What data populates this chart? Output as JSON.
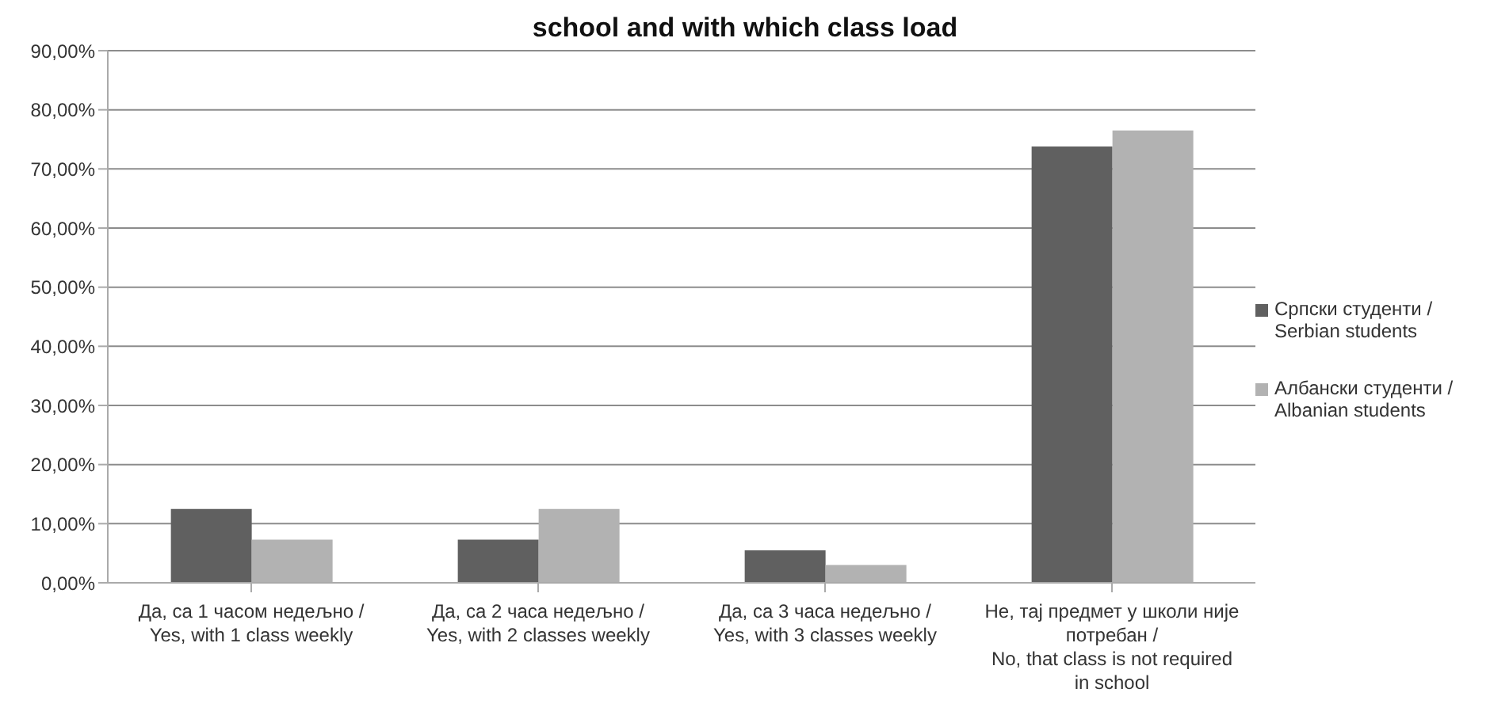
{
  "chart_data": {
    "type": "bar",
    "title": "school and with which class load",
    "categories": [
      "Да, са 1 часом недељно / Yes, with 1 class weekly",
      "Да, са 2 часа недељно / Yes, with 2 classes weekly",
      "Да, са 3 часа недељно / Yes, with 3 classes weekly",
      "Не, тај предмет у школи није потребан / No, that class is not required in school"
    ],
    "series": [
      {
        "name": "Српски студенти / Serbian students",
        "color": "#606060",
        "values": [
          12.5,
          7.3,
          5.5,
          73.8
        ]
      },
      {
        "name": "Албански студенти / Albanian students",
        "color": "#b2b2b2",
        "values": [
          7.3,
          12.5,
          3.0,
          76.5
        ]
      }
    ],
    "ylim": [
      0,
      90
    ],
    "yticks": [
      {
        "value": 0,
        "label": "0,00%"
      },
      {
        "value": 10,
        "label": "10,00%"
      },
      {
        "value": 20,
        "label": "20,00%"
      },
      {
        "value": 30,
        "label": "30,00%"
      },
      {
        "value": 40,
        "label": "40,00%"
      },
      {
        "value": 50,
        "label": "50,00%"
      },
      {
        "value": 60,
        "label": "60,00%"
      },
      {
        "value": 70,
        "label": "70,00%"
      },
      {
        "value": 80,
        "label": "80,00%"
      },
      {
        "value": 90,
        "label": "90,00%"
      }
    ],
    "grid": "y",
    "legend": "right"
  }
}
